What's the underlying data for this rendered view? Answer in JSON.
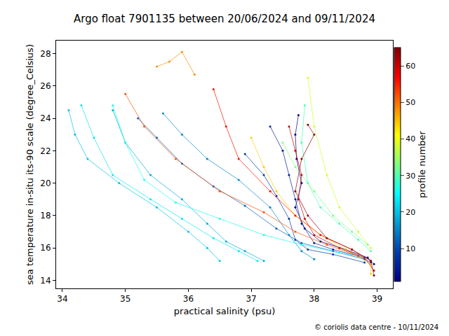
{
  "chart_data": {
    "type": "scatter",
    "title": "Argo float 7901135 between 20/06/2024 and 09/11/2024",
    "x_label": "practical salinity (psu)",
    "y_label": "sea temperature in-situ its-90 scale (degree_Celsius)",
    "annotations": [
      "© coriolis data centre - 10/11/2024"
    ],
    "xlim": [
      33.9,
      39.25
    ],
    "xticks": [
      34,
      35,
      36,
      37,
      38,
      39
    ],
    "ylim": [
      13.5,
      28.8
    ],
    "yticks": [
      14,
      16,
      18,
      20,
      22,
      24,
      26,
      28
    ],
    "grid": false,
    "marker": "circle",
    "line_style": "solid",
    "color": "Jet",
    "colorbar": {
      "title": "profile number",
      "range": [
        1,
        65
      ],
      "ticks": [
        10,
        20,
        30,
        40,
        50,
        60
      ]
    },
    "series": [
      {
        "profile": 1,
        "x": [
          37.75,
          37.7,
          37.72,
          37.8,
          37.7,
          37.85,
          38.1,
          38.5,
          38.85,
          38.95
        ],
        "y": [
          24.2,
          23,
          21.5,
          20,
          18.5,
          17.2,
          16.4,
          15.9,
          15.4,
          15.0
        ]
      },
      {
        "profile": 5,
        "x": [
          37.3,
          37.5,
          37.6,
          37.7,
          37.8,
          38.0,
          38.3,
          38.7,
          38.9
        ],
        "y": [
          23.5,
          22,
          20.5,
          19,
          17.5,
          16.3,
          15.9,
          15.5,
          15.1
        ]
      },
      {
        "profile": 8,
        "x": [
          36.9,
          37.2,
          37.4,
          37.6,
          37.7,
          37.9,
          38.3,
          38.8
        ],
        "y": [
          21.8,
          20.5,
          19.2,
          17.8,
          16.5,
          15.9,
          15.6,
          15.1
        ]
      },
      {
        "profile": 12,
        "x": [
          35.2,
          35.5,
          35.9,
          36.4,
          36.9,
          37.4,
          37.8,
          38.3,
          38.8
        ],
        "y": [
          24.0,
          22.8,
          21.2,
          19.8,
          18.6,
          17.2,
          16.3,
          15.8,
          15.3
        ]
      },
      {
        "profile": 15,
        "x": [
          35.6,
          35.9,
          36.3,
          36.8,
          37.3,
          37.6,
          37.8,
          38.0
        ],
        "y": [
          24.3,
          23,
          21.5,
          20.2,
          18.5,
          16.8,
          15.8,
          15.3
        ]
      },
      {
        "profile": 18,
        "x": [
          34.8,
          35.0,
          35.4,
          35.9,
          36.3,
          36.6,
          36.9,
          37.2
        ],
        "y": [
          24.5,
          22.5,
          20.5,
          19,
          17.5,
          16.4,
          15.8,
          15.2
        ]
      },
      {
        "profile": 20,
        "x": [
          34.1,
          34.2,
          34.4,
          34.9,
          35.5,
          36.0,
          36.3,
          36.5
        ],
        "y": [
          24.5,
          23.0,
          21.5,
          20.0,
          18.5,
          17.0,
          16.0,
          15.2
        ]
      },
      {
        "profile": 23,
        "x": [
          34.3,
          34.5,
          34.8,
          35.4,
          35.9,
          36.4,
          36.8,
          37.1
        ],
        "y": [
          24.8,
          22.8,
          20.5,
          19.0,
          17.8,
          16.6,
          15.8,
          15.2
        ]
      },
      {
        "profile": 26,
        "x": [
          34.8,
          35.0,
          35.3,
          35.8,
          36.5,
          37.2,
          37.8,
          38.4,
          38.8
        ],
        "y": [
          24.8,
          22.5,
          20.2,
          18.8,
          17.8,
          16.8,
          16.2,
          15.7,
          15.4
        ]
      },
      {
        "profile": 29,
        "x": [
          37.85,
          37.8,
          37.9,
          38.1,
          38.4,
          38.7,
          38.9
        ],
        "y": [
          24.8,
          22.5,
          20,
          18.5,
          17.5,
          16.5,
          15.8
        ]
      },
      {
        "profile": 33,
        "x": [
          37.5,
          37.7,
          38.0,
          38.3,
          38.6,
          38.85
        ],
        "y": [
          22.5,
          21,
          19.5,
          18,
          17,
          16.2
        ]
      },
      {
        "profile": 38,
        "x": [
          37.9,
          38.0,
          38.2,
          38.4,
          38.7,
          38.9
        ],
        "y": [
          26.5,
          23.5,
          20.5,
          18.5,
          17,
          16
        ]
      },
      {
        "profile": 44,
        "x": [
          37.0,
          37.2,
          37.4,
          37.7,
          38.1,
          38.5,
          38.9,
          38.9
        ],
        "y": [
          22.8,
          21.0,
          19.5,
          18.0,
          16.8,
          15.9,
          15.0,
          14.4
        ]
      },
      {
        "profile": 48,
        "x": [
          35.5,
          35.7,
          35.9,
          36.1
        ],
        "y": [
          27.2,
          27.5,
          28.1,
          26.7
        ]
      },
      {
        "profile": 52,
        "x": [
          35.0,
          35.3,
          35.8,
          36.5,
          37.2,
          37.7,
          38.2,
          38.7
        ],
        "y": [
          25.5,
          23.5,
          21.5,
          19.5,
          18.2,
          17.0,
          16.2,
          15.5
        ]
      },
      {
        "profile": 56,
        "x": [
          36.4,
          36.6,
          36.8,
          37.3,
          37.7,
          38.1,
          38.6,
          38.9
        ],
        "y": [
          25.8,
          23.5,
          21.5,
          19.5,
          18.0,
          16.8,
          15.9,
          15.2
        ]
      },
      {
        "profile": 60,
        "x": [
          37.6,
          37.7,
          37.8,
          37.75,
          37.85,
          38.0,
          38.4,
          38.8,
          38.95
        ],
        "y": [
          23.5,
          22.0,
          20.5,
          19.0,
          17.8,
          16.8,
          16.0,
          15.4,
          14.6
        ]
      },
      {
        "profile": 64,
        "x": [
          37.9,
          38.0,
          37.8,
          37.7,
          37.9,
          38.2,
          38.6,
          38.9,
          38.95
        ],
        "y": [
          23.6,
          23.0,
          21.5,
          19.5,
          18.0,
          16.6,
          15.9,
          15.2,
          14.3
        ]
      }
    ]
  }
}
